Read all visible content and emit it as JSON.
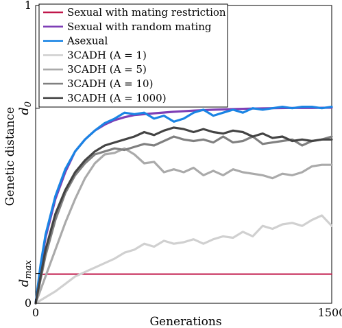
{
  "chart_data": {
    "type": "line",
    "xlabel": "Generations",
    "ylabel": "Genetic distance",
    "xlim": [
      0,
      1500
    ],
    "ylim": [
      0,
      1
    ],
    "x_ticks": [
      {
        "value": 0,
        "label": "0"
      },
      {
        "value": 1500,
        "label": "1500"
      }
    ],
    "y_ticks": [
      {
        "value": 0,
        "label": "0",
        "style": "plain"
      },
      {
        "value": 0.1,
        "label": "d",
        "sub": "max",
        "style": "italic"
      },
      {
        "value": 0.655,
        "label": "d",
        "sub": "0",
        "style": "italic"
      },
      {
        "value": 1,
        "label": "1",
        "style": "plain"
      }
    ],
    "grid": false,
    "legend_position": "top-left",
    "series": [
      {
        "name": "Sexual with mating restriction",
        "color": "#c0174a",
        "x": [
          0,
          30,
          60,
          1500
        ],
        "y": [
          0.0,
          0.097,
          0.098,
          0.098
        ]
      },
      {
        "name": "Sexual with random mating",
        "color": "#7e3fb6",
        "x": [
          0,
          25,
          50,
          100,
          150,
          200,
          250,
          300,
          350,
          400,
          450,
          500,
          600,
          700,
          800,
          900,
          1000,
          1100,
          1200,
          1300,
          1400,
          1500
        ],
        "y": [
          0.0,
          0.12,
          0.22,
          0.35,
          0.44,
          0.51,
          0.55,
          0.58,
          0.6,
          0.615,
          0.625,
          0.632,
          0.638,
          0.643,
          0.647,
          0.65,
          0.652,
          0.654,
          0.655,
          0.656,
          0.656,
          0.657
        ]
      },
      {
        "name": "Asexual",
        "color": "#1a84e4",
        "x": [
          0,
          25,
          50,
          100,
          150,
          200,
          250,
          300,
          350,
          400,
          450,
          500,
          550,
          600,
          650,
          700,
          750,
          800,
          850,
          900,
          950,
          1000,
          1050,
          1100,
          1150,
          1200,
          1250,
          1300,
          1350,
          1400,
          1450,
          1500
        ],
        "y": [
          0.0,
          0.13,
          0.23,
          0.36,
          0.45,
          0.51,
          0.55,
          0.58,
          0.605,
          0.62,
          0.64,
          0.635,
          0.64,
          0.62,
          0.63,
          0.61,
          0.62,
          0.64,
          0.65,
          0.63,
          0.64,
          0.65,
          0.64,
          0.655,
          0.65,
          0.655,
          0.66,
          0.655,
          0.66,
          0.66,
          0.655,
          0.66
        ]
      },
      {
        "name": "3CADH (A = 1)",
        "color": "#d0d0d0",
        "x": [
          0,
          50,
          100,
          150,
          200,
          250,
          300,
          350,
          400,
          450,
          500,
          550,
          600,
          650,
          700,
          750,
          800,
          850,
          900,
          950,
          1000,
          1050,
          1100,
          1150,
          1200,
          1250,
          1300,
          1350,
          1400,
          1450,
          1500
        ],
        "y": [
          0.0,
          0.02,
          0.04,
          0.065,
          0.09,
          0.105,
          0.12,
          0.135,
          0.15,
          0.17,
          0.18,
          0.2,
          0.19,
          0.21,
          0.2,
          0.205,
          0.215,
          0.2,
          0.215,
          0.225,
          0.22,
          0.24,
          0.225,
          0.26,
          0.25,
          0.265,
          0.27,
          0.26,
          0.28,
          0.295,
          0.26
        ]
      },
      {
        "name": "3CADH (A = 5)",
        "color": "#aaaaaa",
        "x": [
          0,
          50,
          100,
          150,
          200,
          250,
          300,
          350,
          400,
          450,
          500,
          550,
          600,
          650,
          700,
          750,
          800,
          850,
          900,
          950,
          1000,
          1050,
          1100,
          1150,
          1200,
          1250,
          1300,
          1350,
          1400,
          1450,
          1500
        ],
        "y": [
          0.0,
          0.09,
          0.18,
          0.27,
          0.35,
          0.42,
          0.47,
          0.5,
          0.505,
          0.52,
          0.5,
          0.47,
          0.475,
          0.44,
          0.45,
          0.44,
          0.455,
          0.43,
          0.445,
          0.43,
          0.45,
          0.44,
          0.435,
          0.43,
          0.42,
          0.435,
          0.43,
          0.44,
          0.46,
          0.465,
          0.465
        ]
      },
      {
        "name": "3CADH (A = 10)",
        "color": "#808080",
        "x": [
          0,
          50,
          100,
          150,
          200,
          250,
          300,
          350,
          400,
          450,
          500,
          550,
          600,
          650,
          700,
          750,
          800,
          850,
          900,
          950,
          1000,
          1050,
          1100,
          1150,
          1200,
          1250,
          1300,
          1350,
          1400,
          1450,
          1500
        ],
        "y": [
          0.0,
          0.16,
          0.28,
          0.37,
          0.43,
          0.47,
          0.5,
          0.51,
          0.52,
          0.515,
          0.525,
          0.535,
          0.53,
          0.545,
          0.56,
          0.55,
          0.545,
          0.55,
          0.54,
          0.56,
          0.54,
          0.545,
          0.56,
          0.535,
          0.54,
          0.545,
          0.55,
          0.53,
          0.545,
          0.55,
          0.56
        ]
      },
      {
        "name": "3CADH (A = 1000)",
        "color": "#444444",
        "x": [
          0,
          50,
          100,
          150,
          200,
          250,
          300,
          350,
          400,
          450,
          500,
          550,
          600,
          650,
          700,
          750,
          800,
          850,
          900,
          950,
          1000,
          1050,
          1100,
          1150,
          1200,
          1250,
          1300,
          1350,
          1400,
          1450,
          1500
        ],
        "y": [
          0.0,
          0.18,
          0.3,
          0.38,
          0.44,
          0.48,
          0.51,
          0.53,
          0.54,
          0.55,
          0.56,
          0.575,
          0.565,
          0.58,
          0.59,
          0.585,
          0.575,
          0.585,
          0.575,
          0.57,
          0.58,
          0.575,
          0.56,
          0.57,
          0.555,
          0.56,
          0.545,
          0.55,
          0.545,
          0.55,
          0.55
        ]
      }
    ]
  }
}
